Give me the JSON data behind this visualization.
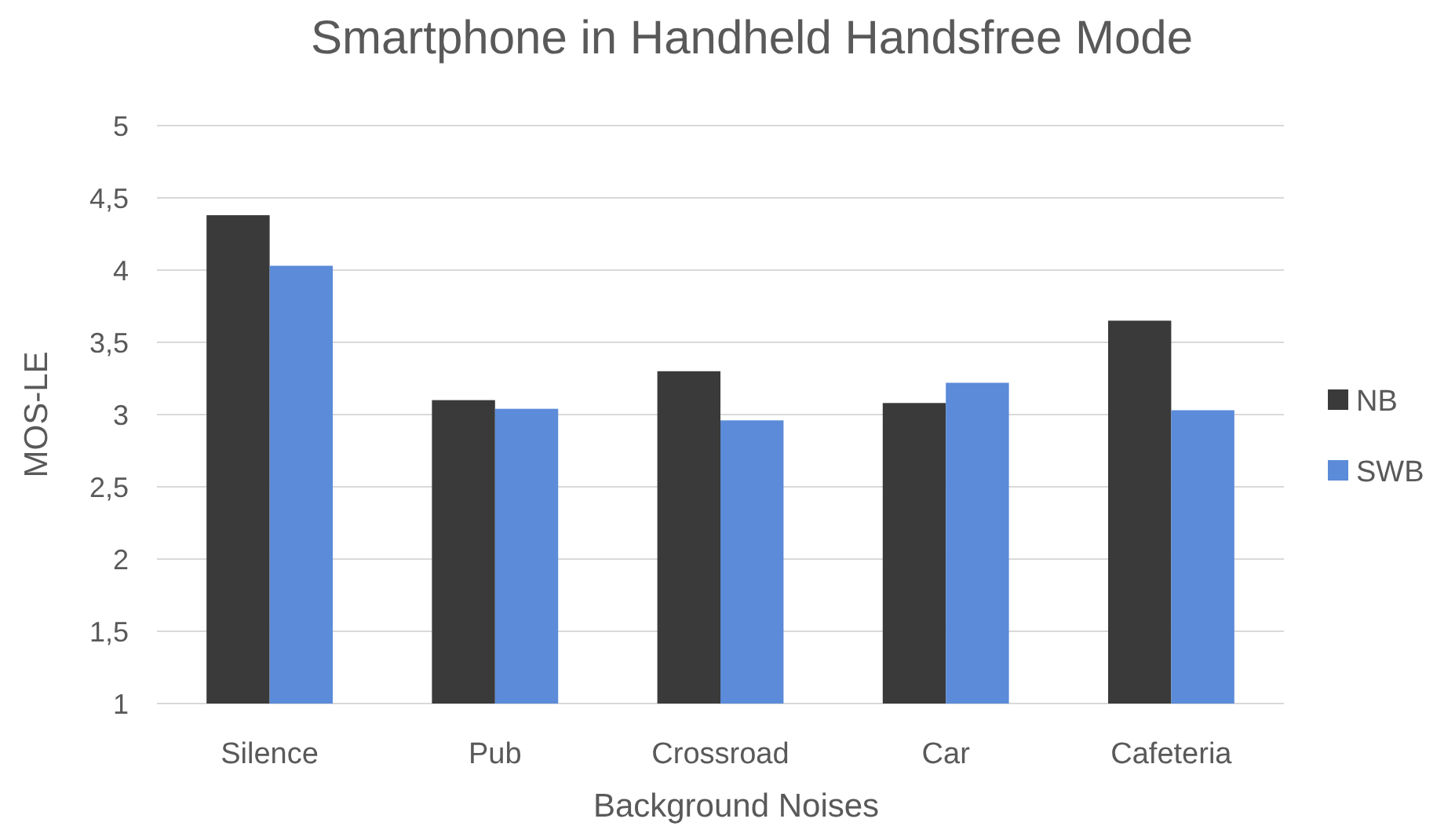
{
  "chart_data": {
    "type": "bar",
    "title": "Smartphone in Handheld Handsfree Mode",
    "xlabel": "Background Noises",
    "ylabel": "MOS-LE",
    "categories": [
      "Silence",
      "Pub",
      "Crossroad",
      "Car",
      "Cafeteria"
    ],
    "series": [
      {
        "name": "NB",
        "color": "#3a3a3a",
        "values": [
          4.38,
          3.1,
          3.3,
          3.08,
          3.65
        ]
      },
      {
        "name": "SWB",
        "color": "#5b8bd9",
        "values": [
          4.03,
          3.04,
          2.96,
          3.22,
          3.03
        ]
      }
    ],
    "ylim": [
      1,
      5
    ],
    "yticks": [
      1,
      {
        "value": 1.5,
        "label": "1,5"
      },
      2,
      {
        "value": 2.5,
        "label": "2,5"
      },
      3,
      {
        "value": 3.5,
        "label": "3,5"
      },
      4,
      {
        "value": 4.5,
        "label": "4,5"
      },
      5
    ],
    "grid": "y",
    "legend": "right"
  }
}
